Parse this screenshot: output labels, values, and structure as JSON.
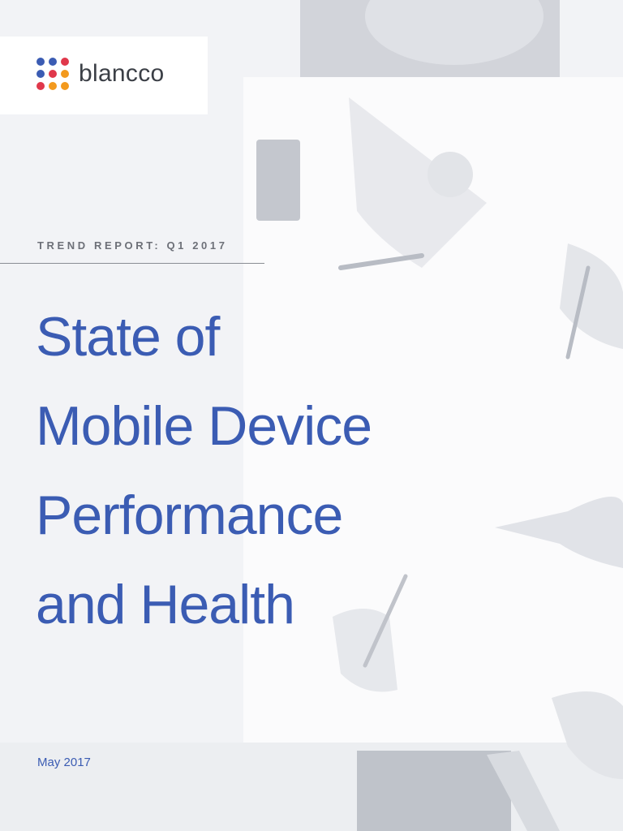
{
  "logo": {
    "text": "blancco"
  },
  "cover": {
    "kicker": "TREND REPORT: Q1 2017",
    "title_lines": [
      "State of",
      "Mobile Device",
      "Performance",
      "and Health"
    ],
    "date": "May 2017"
  }
}
